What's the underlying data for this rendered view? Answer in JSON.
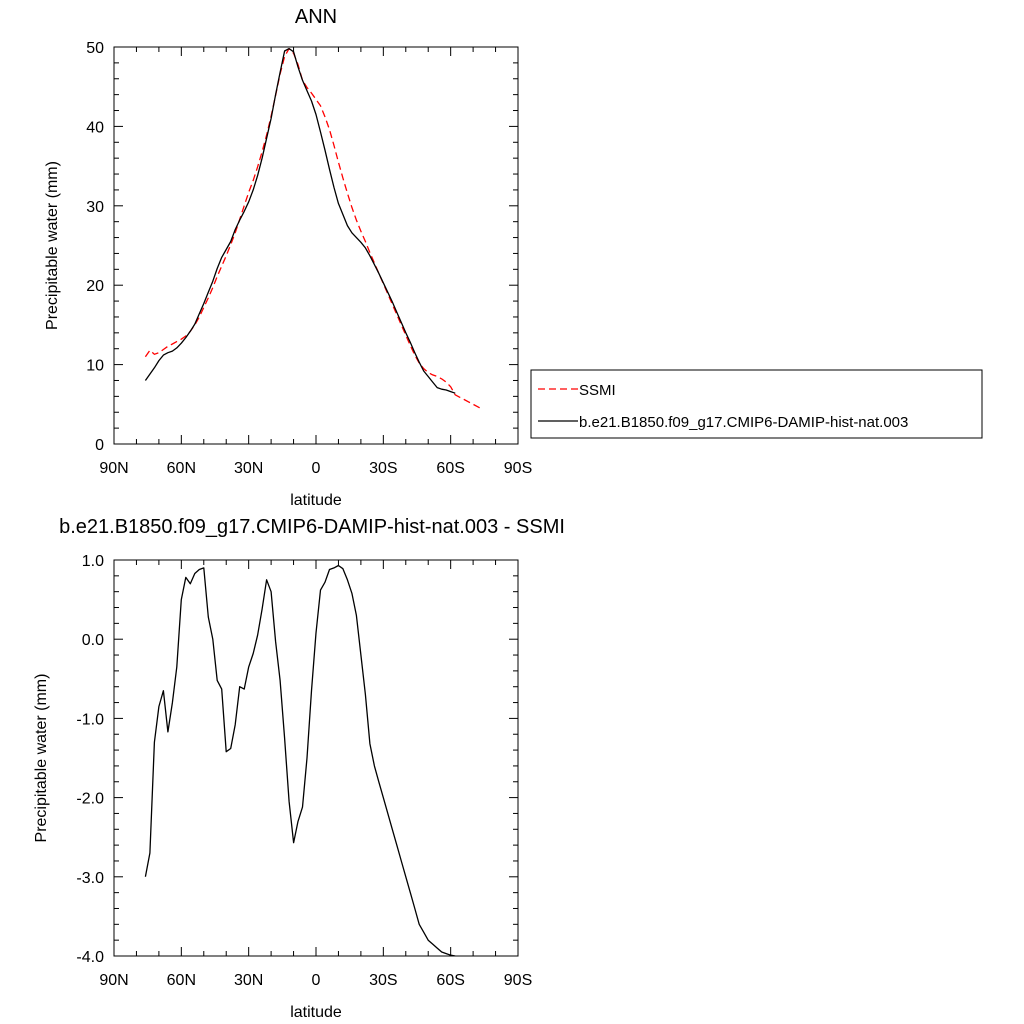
{
  "chart_data": [
    {
      "type": "line",
      "title": "ANN",
      "xlabel": "latitude",
      "ylabel": "Precipitable water (mm)",
      "xlim": [
        90,
        -90
      ],
      "ylim": [
        0,
        50
      ],
      "x_ticks": [
        90,
        60,
        30,
        0,
        -30,
        -60,
        -90
      ],
      "x_tick_labels": [
        "90N",
        "60N",
        "30N",
        "0",
        "30S",
        "60S",
        "90S"
      ],
      "y_ticks": [
        0,
        10,
        20,
        30,
        40,
        50
      ],
      "y_tick_labels": [
        "0",
        "10",
        "20",
        "30",
        "40",
        "50"
      ],
      "legend_placement": "right",
      "series": [
        {
          "name": "SSMI",
          "color": "#ff0000",
          "dash": "dashed",
          "x": [
            76,
            74,
            72,
            70,
            68,
            66,
            64,
            62,
            60,
            58,
            56,
            54,
            52,
            50,
            48,
            46,
            44,
            42,
            40,
            38,
            36,
            34,
            32,
            30,
            28,
            26,
            24,
            22,
            20,
            18,
            16,
            14,
            12,
            10,
            8,
            6,
            4,
            2,
            0,
            -2,
            -4,
            -6,
            -8,
            -10,
            -12,
            -14,
            -16,
            -18,
            -20,
            -22,
            -24,
            -26,
            -28,
            -30,
            -32,
            -34,
            -36,
            -38,
            -40,
            -42,
            -44,
            -46,
            -48,
            -50,
            -52,
            -54,
            -56,
            -58,
            -60,
            -62,
            -64,
            -66,
            -68,
            -70,
            -72,
            -74
          ],
          "values": [
            11.0,
            11.8,
            11.3,
            11.5,
            11.9,
            12.3,
            12.6,
            12.9,
            13.2,
            13.6,
            14.2,
            15.0,
            16.0,
            17.2,
            18.4,
            19.7,
            21.1,
            22.4,
            23.7,
            25.1,
            26.6,
            28.3,
            30.0,
            31.7,
            33.2,
            34.9,
            36.8,
            38.9,
            41.3,
            43.9,
            46.6,
            48.8,
            49.8,
            49.2,
            47.8,
            45.8,
            44.9,
            44.2,
            43.4,
            42.6,
            41.2,
            39.6,
            37.6,
            35.5,
            33.5,
            31.6,
            29.8,
            28.2,
            26.8,
            25.5,
            24.1,
            22.8,
            21.5,
            20.2,
            18.9,
            17.6,
            16.3,
            15.0,
            13.7,
            12.4,
            11.2,
            10.2,
            9.5,
            9.0,
            8.7,
            8.5,
            8.2,
            7.8,
            7.2,
            6.2,
            5.9,
            5.6,
            5.3,
            5.0,
            4.7,
            4.4
          ]
        },
        {
          "name": "b.e21.B1850.f09_g17.CMIP6-DAMIP-hist-nat.003",
          "color": "#000000",
          "dash": "solid",
          "x": [
            76,
            74,
            72,
            70,
            68,
            66,
            64,
            62,
            60,
            58,
            56,
            54,
            52,
            50,
            48,
            46,
            44,
            42,
            40,
            38,
            36,
            34,
            32,
            30,
            28,
            26,
            24,
            22,
            20,
            18,
            16,
            14,
            12,
            10,
            8,
            6,
            4,
            2,
            0,
            -2,
            -4,
            -6,
            -8,
            -10,
            -12,
            -14,
            -16,
            -18,
            -20,
            -22,
            -24,
            -26,
            -28,
            -30,
            -32,
            -34,
            -36,
            -38,
            -40,
            -42,
            -44,
            -46,
            -48,
            -50,
            -52,
            -54,
            -56,
            -58,
            -60,
            -62
          ],
          "values": [
            8.0,
            8.8,
            9.6,
            10.5,
            11.2,
            11.5,
            11.7,
            12.1,
            12.7,
            13.4,
            14.2,
            15.1,
            16.4,
            17.7,
            19.1,
            20.5,
            22.1,
            23.5,
            24.5,
            25.5,
            27.0,
            28.2,
            29.3,
            30.5,
            32.0,
            33.8,
            36.0,
            38.5,
            41.0,
            44.0,
            46.8,
            49.5,
            49.8,
            49.4,
            47.5,
            45.8,
            44.5,
            43.2,
            41.5,
            39.3,
            37.0,
            34.6,
            32.3,
            30.3,
            28.9,
            27.5,
            26.6,
            26.0,
            25.4,
            24.7,
            23.7,
            22.6,
            21.5,
            20.3,
            19.1,
            17.9,
            16.6,
            15.3,
            14.0,
            12.8,
            11.5,
            10.3,
            9.2,
            8.5,
            7.8,
            7.1,
            6.9,
            6.8,
            6.6,
            6.4
          ]
        }
      ]
    },
    {
      "type": "line",
      "title": "b.e21.B1850.f09_g17.CMIP6-DAMIP-hist-nat.003 - SSMI",
      "xlabel": "latitude",
      "ylabel": "Precipitable water (mm)",
      "xlim": [
        90,
        -90
      ],
      "ylim": [
        -4,
        1
      ],
      "x_ticks": [
        90,
        60,
        30,
        0,
        -30,
        -60,
        -90
      ],
      "x_tick_labels": [
        "90N",
        "60N",
        "30N",
        "0",
        "30S",
        "60S",
        "90S"
      ],
      "y_ticks": [
        -4,
        -3,
        -2,
        -1,
        0,
        1
      ],
      "y_tick_labels": [
        "-4.0",
        "-3.0",
        "-2.0",
        "-1.0",
        "0.0",
        "1.0"
      ],
      "series": [
        {
          "name": "",
          "color": "#000000",
          "dash": "solid",
          "x": [
            76,
            74,
            72,
            70,
            68,
            66,
            64,
            62,
            60,
            58,
            56,
            54,
            52,
            50,
            48,
            46,
            44,
            42,
            40,
            38,
            36,
            34,
            32,
            30,
            28,
            26,
            24,
            22,
            20,
            18,
            16,
            14,
            12,
            10,
            8,
            6,
            4,
            2,
            0,
            -2,
            -4,
            -6,
            -8,
            -10,
            -12,
            -14,
            -16,
            -18,
            -20,
            -22,
            -24,
            -26,
            -28,
            -30,
            -32,
            -34,
            -36,
            -38,
            -40,
            -42,
            -44,
            -46,
            -48,
            -50,
            -52,
            -54,
            -56,
            -58,
            -60,
            -62
          ],
          "values": [
            -3.0,
            -2.7,
            -1.3,
            -0.85,
            -0.65,
            -1.17,
            -0.8,
            -0.35,
            0.5,
            0.78,
            0.7,
            0.83,
            0.88,
            0.9,
            0.28,
            0.0,
            -0.52,
            -0.63,
            -1.42,
            -1.38,
            -1.08,
            -0.6,
            -0.63,
            -0.35,
            -0.18,
            0.05,
            0.38,
            0.75,
            0.6,
            -0.03,
            -0.52,
            -1.25,
            -2.05,
            -2.57,
            -2.3,
            -2.12,
            -1.5,
            -0.65,
            0.08,
            0.62,
            0.72,
            0.88,
            0.9,
            0.93,
            0.89,
            0.75,
            0.58,
            0.3,
            -0.2,
            -0.7,
            -1.32,
            -1.6,
            -1.8,
            -2.0,
            -2.2,
            -2.4,
            -2.6,
            -2.8,
            -3.0,
            -3.2,
            -3.4,
            -3.6,
            -3.7,
            -3.8,
            -3.85,
            -3.9,
            -3.95,
            -3.97,
            -3.99,
            -4.0
          ]
        }
      ]
    }
  ]
}
